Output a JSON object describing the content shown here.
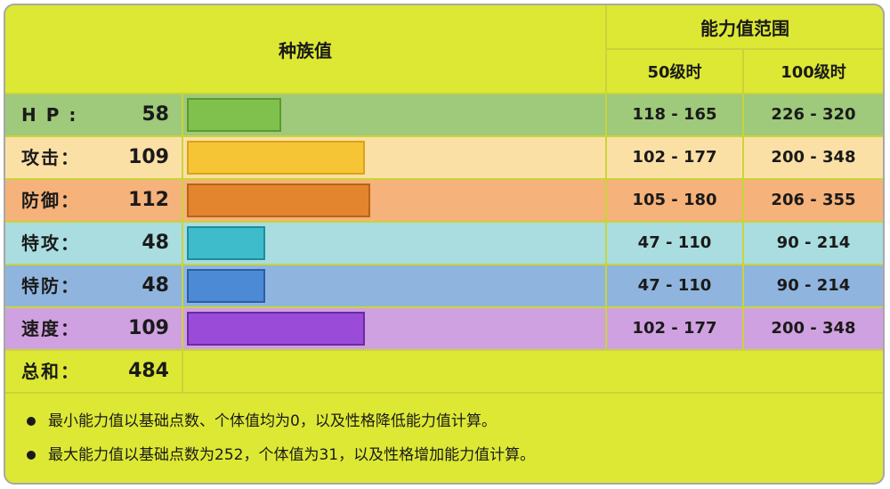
{
  "header": {
    "base_stats": "种族值",
    "stat_range": "能力值范围",
    "level50": "50级时",
    "level100": "100级时"
  },
  "stats": [
    {
      "name": "H P :",
      "value": "58",
      "base": 58,
      "range50": "118 - 165",
      "range100": "226 - 320",
      "bg": "#9fc97b",
      "bar_fill": "#80c04c",
      "bar_border": "#5a9a2e"
    },
    {
      "name": "攻击：",
      "value": "109",
      "base": 109,
      "range50": "102 - 177",
      "range100": "200 - 348",
      "bg": "#fbe0a6",
      "bar_fill": "#f5c536",
      "bar_border": "#d9a31a"
    },
    {
      "name": "防御：",
      "value": "112",
      "base": 112,
      "range50": "105 - 180",
      "range100": "206 - 355",
      "bg": "#f5b27a",
      "bar_fill": "#e2852e",
      "bar_border": "#b96414"
    },
    {
      "name": "特攻：",
      "value": "48",
      "base": 48,
      "range50": "47 - 110",
      "range100": "90 - 214",
      "bg": "#a9dde0",
      "bar_fill": "#3ebccb",
      "bar_border": "#1f8c9c"
    },
    {
      "name": "特防：",
      "value": "48",
      "base": 48,
      "range50": "47 - 110",
      "range100": "90 - 214",
      "bg": "#8fb5df",
      "bar_fill": "#4d8ad5",
      "bar_border": "#2a5ea8"
    },
    {
      "name": "速度：",
      "value": "109",
      "base": 109,
      "range50": "102 - 177",
      "range100": "200 - 348",
      "bg": "#d0a1e0",
      "bar_fill": "#9a4bd8",
      "bar_border": "#6a2aa4"
    }
  ],
  "total": {
    "name": "总和：",
    "value": "484"
  },
  "max_base": 255,
  "notes": [
    "最小能力值以基础点数、个体值均为0，以及性格降低能力值计算。",
    "最大能力值以基础点数为252，个体值为31，以及性格增加能力值计算。"
  ]
}
